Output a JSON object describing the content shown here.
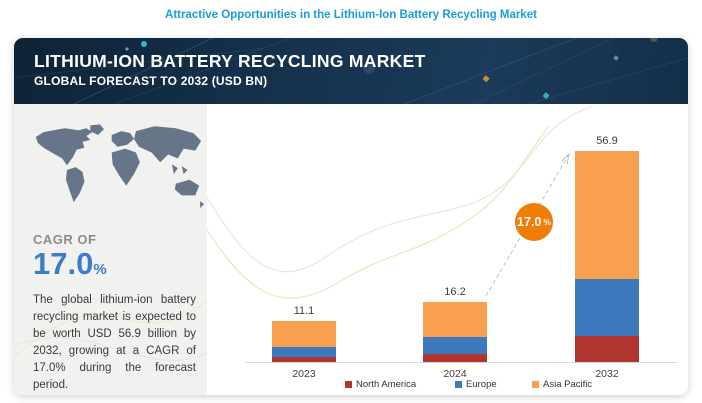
{
  "page_title": "Attractive Opportunities in the Lithium-Ion Battery Recycling Market",
  "banner": {
    "title": "LITHIUM-ION BATTERY RECYCLING MARKET",
    "subtitle": "GLOBAL FORECAST TO 2032 (USD BN)"
  },
  "sidebar": {
    "cagr_label": "CAGR OF",
    "cagr_value": "17.0",
    "cagr_unit": "%",
    "description": "The global lithium-ion battery recycling market is expected to be worth USD 56.9 billion by 2032, growing at a CAGR of 17.0% during the forecast period."
  },
  "chart_data": {
    "type": "bar",
    "stacked": true,
    "title": "Lithium-Ion Battery Recycling Market, Global Forecast to 2032 (USD BN)",
    "categories": [
      "2023",
      "2024",
      "2032"
    ],
    "totals": [
      11.1,
      16.2,
      56.9
    ],
    "series": [
      {
        "name": "North America",
        "color": "#B13531",
        "values": [
          1.3,
          2.1,
          7.0
        ]
      },
      {
        "name": "Europe",
        "color": "#3D7ABD",
        "values": [
          2.8,
          4.6,
          15.5
        ]
      },
      {
        "name": "Asia Pacific",
        "color": "#F9A050",
        "values": [
          7.0,
          9.5,
          34.4
        ]
      }
    ],
    "unit": "USD BN",
    "ylim": [
      0,
      60
    ],
    "grid": false,
    "legend_position": "bottom",
    "growth_badge": {
      "value": "17.0",
      "unit": "%"
    }
  },
  "colors": {
    "page_title_blue": "#1A9CD8",
    "banner_navy": "#13293F",
    "sidebar_bg": "#F1F1EF",
    "map_gray_blue": "#66758A",
    "cagr_blue": "#3C7EC5",
    "badge_orange": "#F07D05",
    "axis_gray": "#D8D8D8"
  }
}
